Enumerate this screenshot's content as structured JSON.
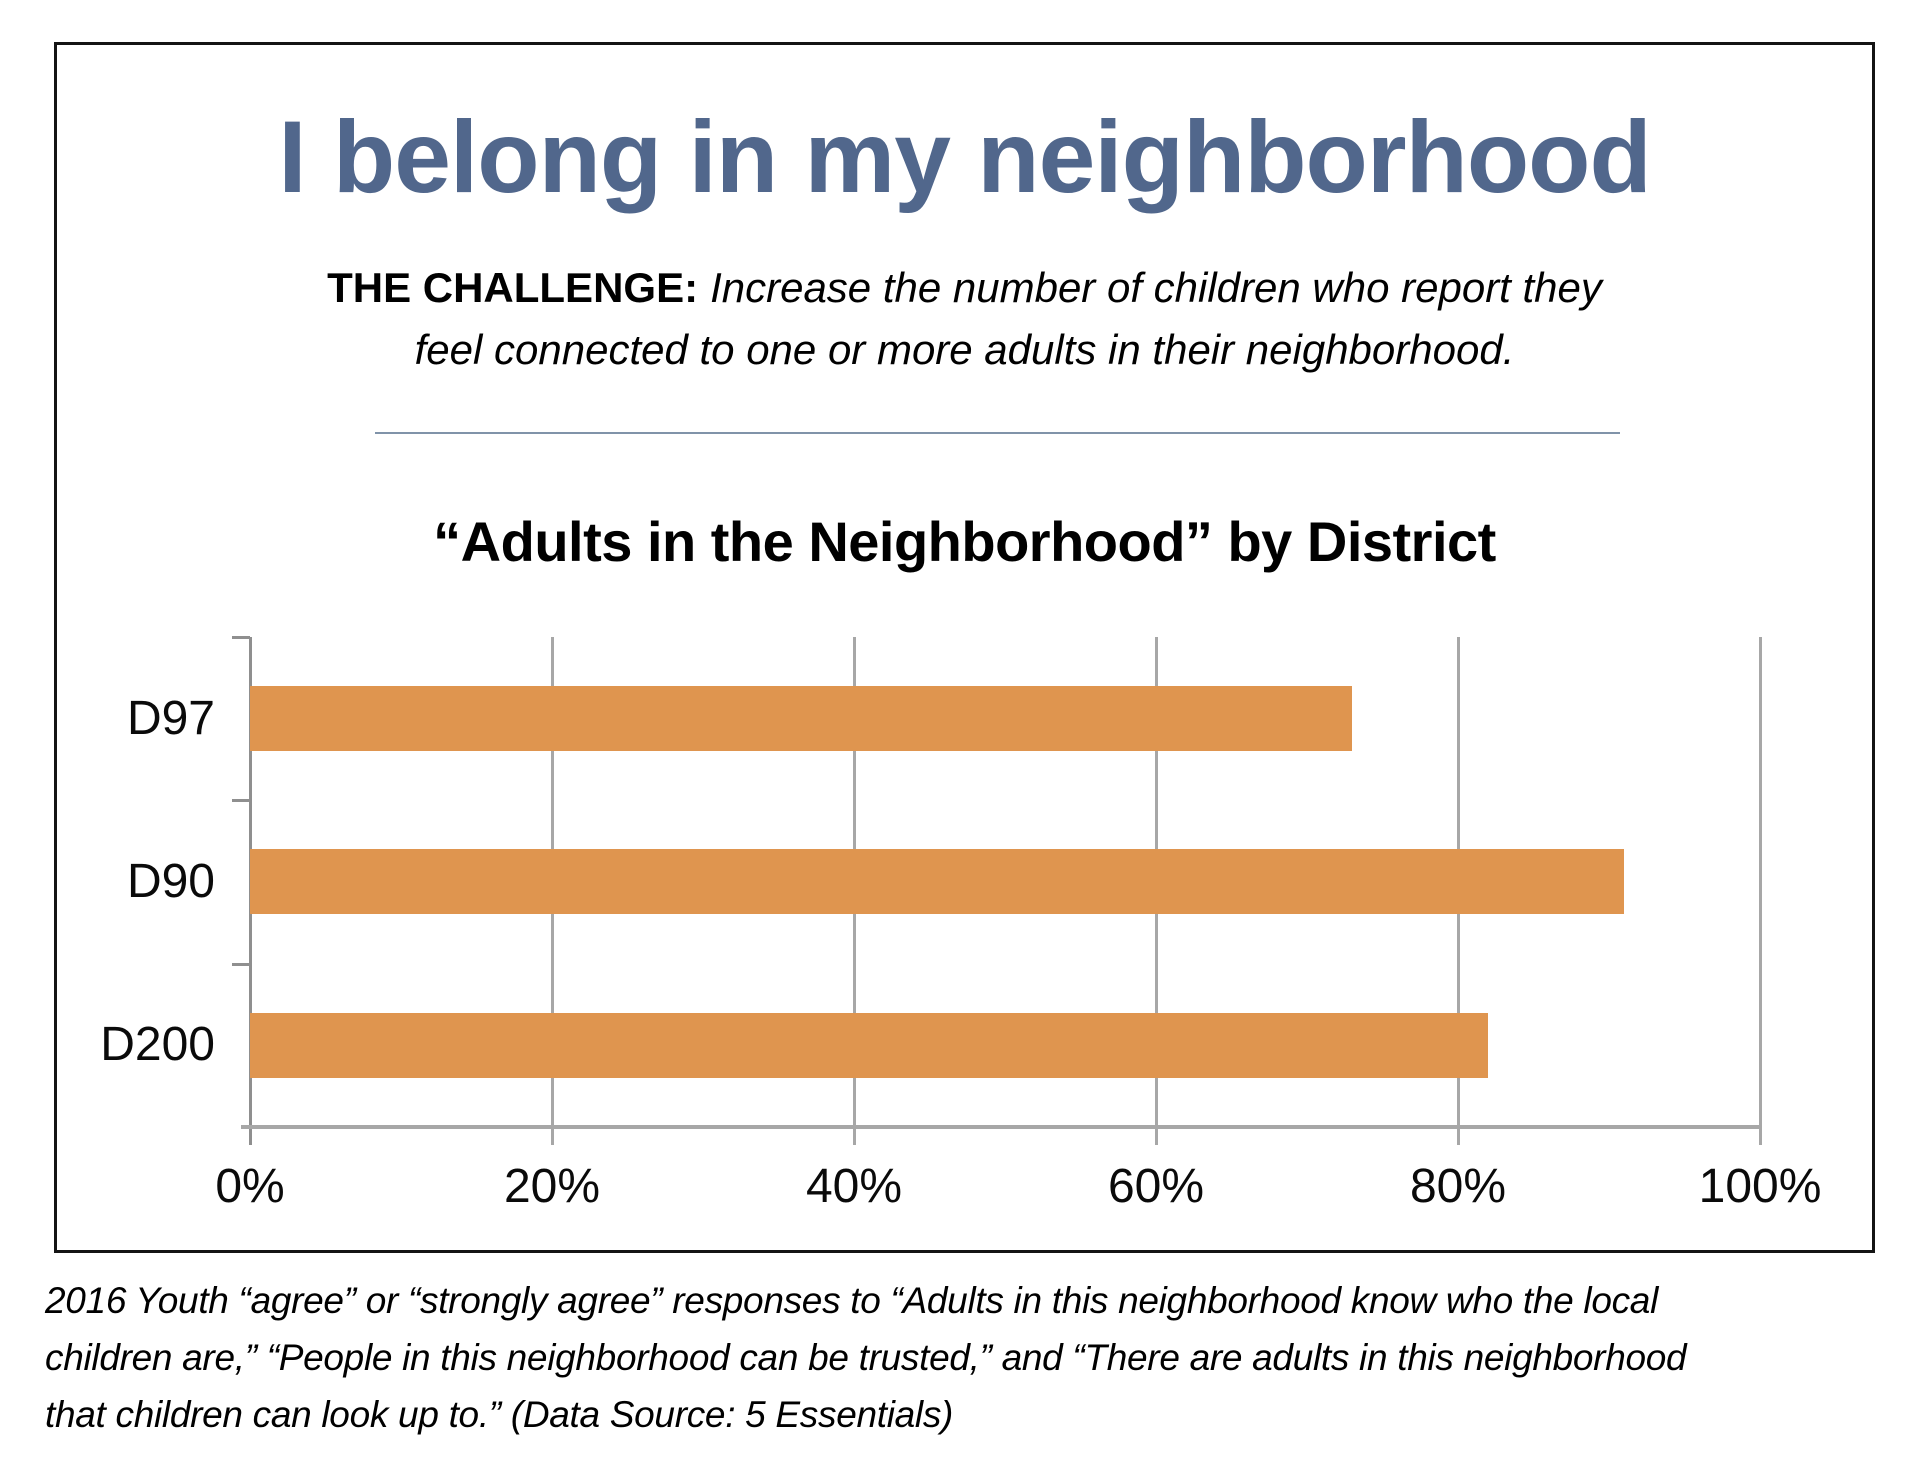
{
  "header": {
    "title": "I belong in my neighborhood",
    "challenge_label": "THE CHALLENGE:",
    "challenge_line1": "Increase the number of children who report they",
    "challenge_line2": "feel connected to one or more adults in their neighborhood."
  },
  "chart_data": {
    "type": "bar",
    "orientation": "horizontal",
    "title": "“Adults in the Neighborhood” by District",
    "categories": [
      "D97",
      "D90",
      "D200"
    ],
    "values": [
      73,
      91,
      82
    ],
    "unit": "%",
    "xlabel": "",
    "ylabel": "",
    "xlim": [
      0,
      100
    ],
    "x_ticks": [
      "0%",
      "20%",
      "40%",
      "60%",
      "80%",
      "100%"
    ],
    "grid": true,
    "legend_position": "none",
    "bar_color": "#DF954F",
    "gridline_color": "#A7A7A7",
    "axis_color": "#8F8F8F"
  },
  "footnote": {
    "lines": [
      "2016 Youth “agree” or “strongly agree” responses to “Adults in this neighborhood know who the local",
      "children are,” “People in this neighborhood can be trusted,” and “There are adults in this neighborhood",
      "that children can look up to.” (Data Source: 5 Essentials)"
    ]
  },
  "colors": {
    "title_blue": "#51678C",
    "divider": "#8093A9",
    "border": "#141414"
  }
}
